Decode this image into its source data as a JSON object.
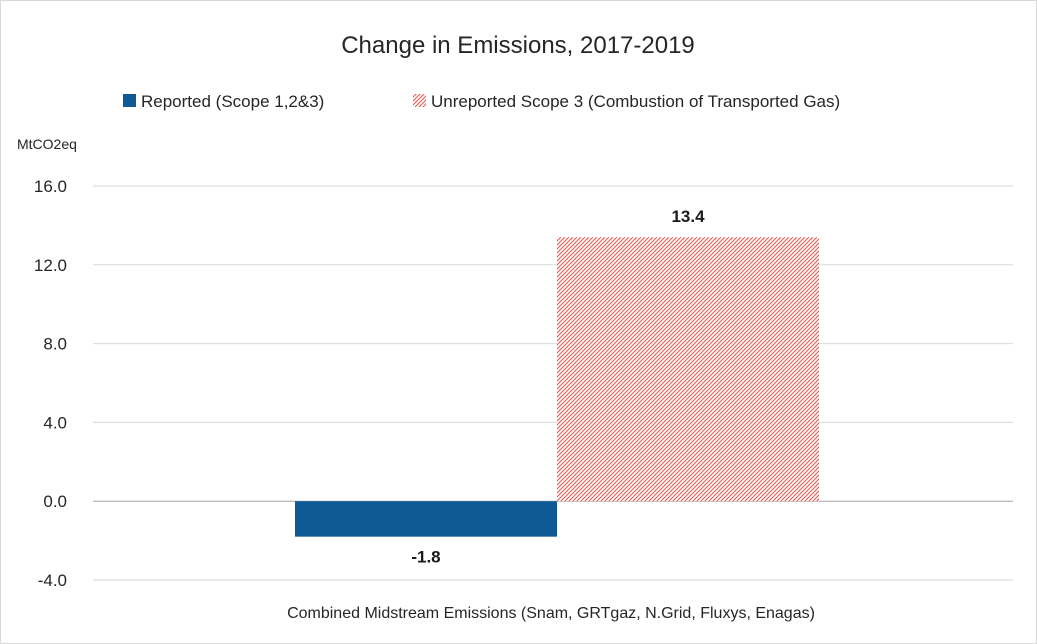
{
  "chart_data": {
    "type": "bar",
    "title": "Change in Emissions, 2017-2019",
    "unit_label": "MtCO2eq",
    "categories": [
      "Combined Midstream Emissions (Snam, GRTgaz, N.Grid, Fluxys, Enagas)"
    ],
    "series": [
      {
        "name": "Reported (Scope 1,2&3)",
        "values": [
          -1.8
        ],
        "value_labels": [
          "-1.8"
        ],
        "color": "#0f5a96",
        "pattern": "solid"
      },
      {
        "name": "Unreported Scope 3 (Combustion of Transported Gas)",
        "values": [
          13.4
        ],
        "value_labels": [
          "13.4"
        ],
        "color": "#e8524a",
        "pattern": "hatched"
      }
    ],
    "ylim": [
      -4,
      16
    ],
    "yticks": [
      -4,
      0,
      4,
      8,
      12,
      16
    ],
    "ytick_labels": [
      "-4.0",
      "0.0",
      "4.0",
      "8.0",
      "12.0",
      "16.0"
    ],
    "grid": true,
    "legend_position": "top"
  }
}
